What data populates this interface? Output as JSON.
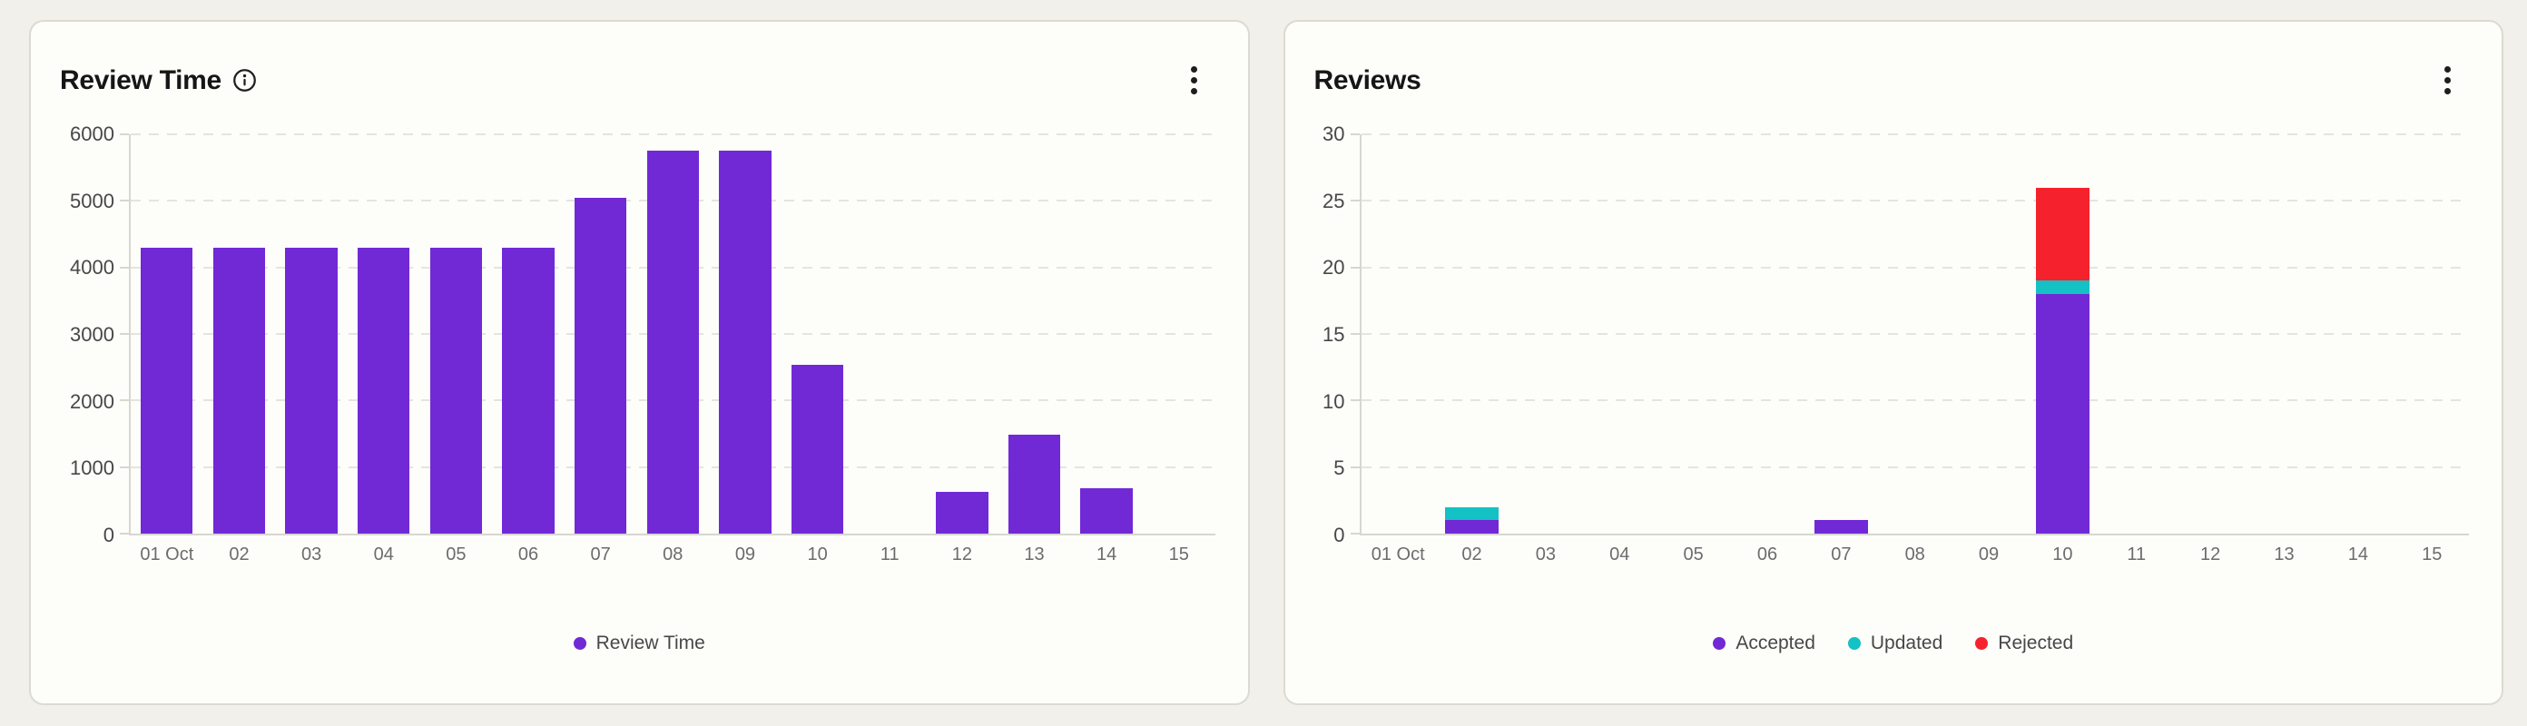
{
  "page": {
    "background": "#f1f0ea",
    "card_background": "#fdfdfa",
    "card_border": "#dcdbd1"
  },
  "cards": [
    {
      "title": "Review Time",
      "info_icon": "info-icon",
      "menu_icon": "kebab-menu-icon",
      "chart_data": {
        "type": "bar",
        "categories": [
          "01 Oct",
          "02",
          "03",
          "04",
          "05",
          "06",
          "07",
          "08",
          "09",
          "10",
          "11",
          "12",
          "13",
          "14",
          "15"
        ],
        "series": [
          {
            "name": "Review Time",
            "color": "#7129D6",
            "values": [
              4300,
              4300,
              4300,
              4300,
              4300,
              4300,
              5050,
              5750,
              5750,
              2530,
              0,
              630,
              1490,
              680,
              0
            ]
          }
        ],
        "title": "Review Time",
        "xlabel": "",
        "ylabel": "",
        "ylim": [
          0,
          6000
        ],
        "yticks": [
          0,
          1000,
          2000,
          3000,
          4000,
          5000,
          6000
        ],
        "grid": "horizontal-dashed",
        "legend_position": "bottom"
      }
    },
    {
      "title": "Reviews",
      "menu_icon": "kebab-menu-icon",
      "chart_data": {
        "type": "bar",
        "stacked": true,
        "categories": [
          "01 Oct",
          "02",
          "03",
          "04",
          "05",
          "06",
          "07",
          "08",
          "09",
          "10",
          "11",
          "12",
          "13",
          "14",
          "15"
        ],
        "series": [
          {
            "name": "Accepted",
            "color": "#7129D6",
            "values": [
              0,
              1,
              0,
              0,
              0,
              0,
              1,
              0,
              0,
              18,
              0,
              0,
              0,
              0,
              0
            ]
          },
          {
            "name": "Updated",
            "color": "#14C1C4",
            "values": [
              0,
              1,
              0,
              0,
              0,
              0,
              0,
              0,
              0,
              1,
              0,
              0,
              0,
              0,
              0
            ]
          },
          {
            "name": "Rejected",
            "color": "#F5222D",
            "values": [
              0,
              0,
              0,
              0,
              0,
              0,
              0,
              0,
              0,
              7,
              0,
              0,
              0,
              0,
              0
            ]
          }
        ],
        "title": "Reviews",
        "xlabel": "",
        "ylabel": "",
        "ylim": [
          0,
          30
        ],
        "yticks": [
          0,
          5,
          10,
          15,
          20,
          25,
          30
        ],
        "grid": "horizontal-dashed",
        "legend_position": "bottom"
      }
    }
  ]
}
